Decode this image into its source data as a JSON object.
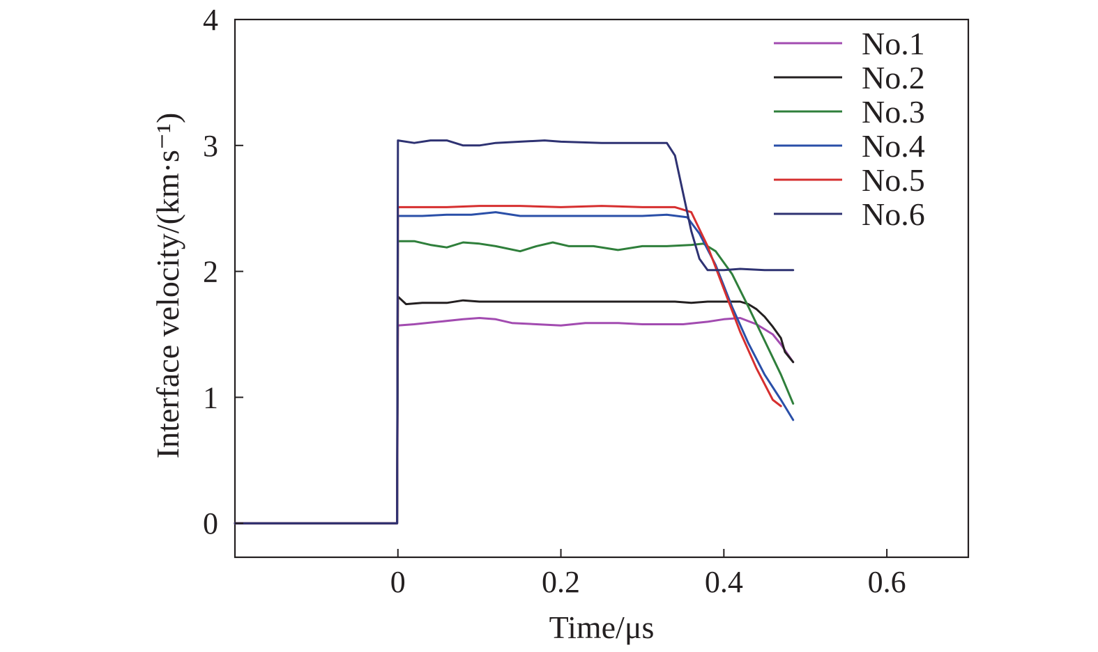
{
  "chart_data": {
    "type": "line",
    "title": "",
    "xlabel": "Time/μs",
    "ylabel": "Interface velocity/(km·s⁻¹)",
    "xlim": [
      -0.2,
      0.7
    ],
    "ylim": [
      -0.27,
      4
    ],
    "xticks": [
      0,
      0.2,
      0.4,
      0.6
    ],
    "xtick_labels": [
      "0",
      "0.2",
      "0.4",
      "0.6"
    ],
    "yticks": [
      0,
      1,
      2,
      3,
      4
    ],
    "ytick_labels": [
      "0",
      "1",
      "2",
      "3",
      "4"
    ],
    "grid": false,
    "legend_position": "top-right",
    "series": [
      {
        "name": "No.1",
        "color": "#a24bb0",
        "points": [
          [
            -0.2,
            0
          ],
          [
            -0.001,
            0
          ],
          [
            0.0,
            1.57
          ],
          [
            0.02,
            1.58
          ],
          [
            0.05,
            1.6
          ],
          [
            0.08,
            1.62
          ],
          [
            0.1,
            1.63
          ],
          [
            0.12,
            1.62
          ],
          [
            0.14,
            1.59
          ],
          [
            0.17,
            1.58
          ],
          [
            0.2,
            1.57
          ],
          [
            0.23,
            1.59
          ],
          [
            0.27,
            1.59
          ],
          [
            0.3,
            1.58
          ],
          [
            0.35,
            1.58
          ],
          [
            0.38,
            1.6
          ],
          [
            0.4,
            1.62
          ],
          [
            0.42,
            1.63
          ],
          [
            0.44,
            1.58
          ],
          [
            0.46,
            1.5
          ],
          [
            0.47,
            1.42
          ],
          [
            0.485,
            1.28
          ]
        ]
      },
      {
        "name": "No.2",
        "color": "#231f20",
        "points": [
          [
            -0.2,
            0
          ],
          [
            -0.001,
            0
          ],
          [
            0.0,
            1.8
          ],
          [
            0.01,
            1.74
          ],
          [
            0.03,
            1.75
          ],
          [
            0.06,
            1.75
          ],
          [
            0.08,
            1.77
          ],
          [
            0.1,
            1.76
          ],
          [
            0.15,
            1.76
          ],
          [
            0.2,
            1.76
          ],
          [
            0.25,
            1.76
          ],
          [
            0.3,
            1.76
          ],
          [
            0.34,
            1.76
          ],
          [
            0.36,
            1.75
          ],
          [
            0.38,
            1.76
          ],
          [
            0.4,
            1.76
          ],
          [
            0.42,
            1.76
          ],
          [
            0.43,
            1.74
          ],
          [
            0.44,
            1.7
          ],
          [
            0.45,
            1.64
          ],
          [
            0.46,
            1.56
          ],
          [
            0.47,
            1.47
          ],
          [
            0.475,
            1.36
          ],
          [
            0.48,
            1.32
          ],
          [
            0.485,
            1.28
          ]
        ]
      },
      {
        "name": "No.3",
        "color": "#2f7f3b",
        "points": [
          [
            -0.2,
            0
          ],
          [
            -0.001,
            0
          ],
          [
            0.0,
            2.24
          ],
          [
            0.02,
            2.24
          ],
          [
            0.04,
            2.21
          ],
          [
            0.06,
            2.19
          ],
          [
            0.08,
            2.23
          ],
          [
            0.1,
            2.22
          ],
          [
            0.12,
            2.2
          ],
          [
            0.15,
            2.16
          ],
          [
            0.17,
            2.2
          ],
          [
            0.19,
            2.23
          ],
          [
            0.21,
            2.2
          ],
          [
            0.24,
            2.2
          ],
          [
            0.27,
            2.17
          ],
          [
            0.3,
            2.2
          ],
          [
            0.33,
            2.2
          ],
          [
            0.36,
            2.21
          ],
          [
            0.375,
            2.22
          ],
          [
            0.39,
            2.16
          ],
          [
            0.41,
            1.98
          ],
          [
            0.43,
            1.72
          ],
          [
            0.45,
            1.45
          ],
          [
            0.47,
            1.18
          ],
          [
            0.485,
            0.95
          ]
        ]
      },
      {
        "name": "No.4",
        "color": "#2a4fa8",
        "points": [
          [
            -0.2,
            0
          ],
          [
            -0.001,
            0
          ],
          [
            0.0,
            2.44
          ],
          [
            0.03,
            2.44
          ],
          [
            0.06,
            2.45
          ],
          [
            0.09,
            2.45
          ],
          [
            0.12,
            2.47
          ],
          [
            0.15,
            2.44
          ],
          [
            0.2,
            2.44
          ],
          [
            0.25,
            2.44
          ],
          [
            0.3,
            2.44
          ],
          [
            0.33,
            2.45
          ],
          [
            0.355,
            2.43
          ],
          [
            0.37,
            2.3
          ],
          [
            0.39,
            2.05
          ],
          [
            0.41,
            1.72
          ],
          [
            0.43,
            1.43
          ],
          [
            0.45,
            1.18
          ],
          [
            0.47,
            0.98
          ],
          [
            0.485,
            0.82
          ]
        ]
      },
      {
        "name": "No.5",
        "color": "#d62f2f",
        "points": [
          [
            -0.2,
            0
          ],
          [
            -0.001,
            0
          ],
          [
            0.0,
            2.51
          ],
          [
            0.03,
            2.51
          ],
          [
            0.06,
            2.51
          ],
          [
            0.1,
            2.52
          ],
          [
            0.15,
            2.52
          ],
          [
            0.2,
            2.51
          ],
          [
            0.25,
            2.52
          ],
          [
            0.3,
            2.51
          ],
          [
            0.34,
            2.51
          ],
          [
            0.36,
            2.47
          ],
          [
            0.38,
            2.2
          ],
          [
            0.4,
            1.86
          ],
          [
            0.42,
            1.52
          ],
          [
            0.44,
            1.23
          ],
          [
            0.46,
            0.98
          ],
          [
            0.47,
            0.93
          ]
        ]
      },
      {
        "name": "No.6",
        "color": "#2e3272",
        "points": [
          [
            -0.2,
            0
          ],
          [
            -0.001,
            0
          ],
          [
            0.0,
            3.04
          ],
          [
            0.02,
            3.02
          ],
          [
            0.04,
            3.04
          ],
          [
            0.06,
            3.04
          ],
          [
            0.08,
            3.0
          ],
          [
            0.1,
            3.0
          ],
          [
            0.12,
            3.02
          ],
          [
            0.15,
            3.03
          ],
          [
            0.18,
            3.04
          ],
          [
            0.2,
            3.03
          ],
          [
            0.25,
            3.02
          ],
          [
            0.3,
            3.02
          ],
          [
            0.33,
            3.02
          ],
          [
            0.34,
            2.92
          ],
          [
            0.35,
            2.62
          ],
          [
            0.36,
            2.32
          ],
          [
            0.37,
            2.1
          ],
          [
            0.38,
            2.01
          ],
          [
            0.4,
            2.01
          ],
          [
            0.42,
            2.02
          ],
          [
            0.45,
            2.01
          ],
          [
            0.485,
            2.01
          ]
        ]
      }
    ]
  }
}
